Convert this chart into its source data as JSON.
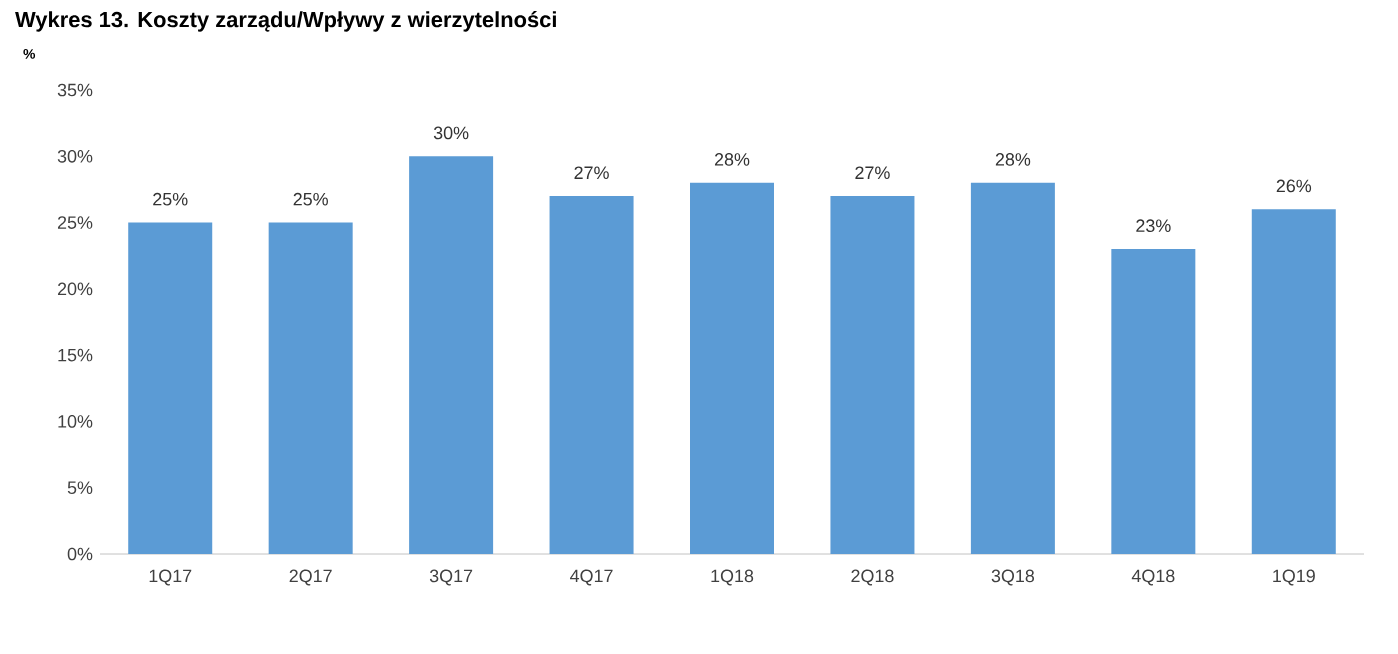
{
  "chart_data": {
    "type": "bar",
    "title": "Wykres 13. Koszty zarządu/Wpływy z wierzytelności",
    "ylabel": "%",
    "categories": [
      "1Q17",
      "2Q17",
      "3Q17",
      "4Q17",
      "1Q18",
      "2Q18",
      "3Q18",
      "4Q18",
      "1Q19"
    ],
    "values": [
      25,
      25,
      30,
      27,
      28,
      27,
      28,
      23,
      26
    ],
    "value_labels": [
      "25%",
      "25%",
      "30%",
      "27%",
      "28%",
      "27%",
      "28%",
      "23%",
      "26%"
    ],
    "color": "#5b9bd5",
    "ylim": [
      0,
      35
    ],
    "yticks": [
      {
        "value": 0,
        "label": "0%"
      },
      {
        "value": 5,
        "label": "5%"
      },
      {
        "value": 10,
        "label": "10%"
      },
      {
        "value": 15,
        "label": "15%"
      },
      {
        "value": 20,
        "label": "20%"
      },
      {
        "value": 25,
        "label": "25%"
      },
      {
        "value": 30,
        "label": "30%"
      },
      {
        "value": 35,
        "label": "35%"
      }
    ],
    "grid": false
  }
}
